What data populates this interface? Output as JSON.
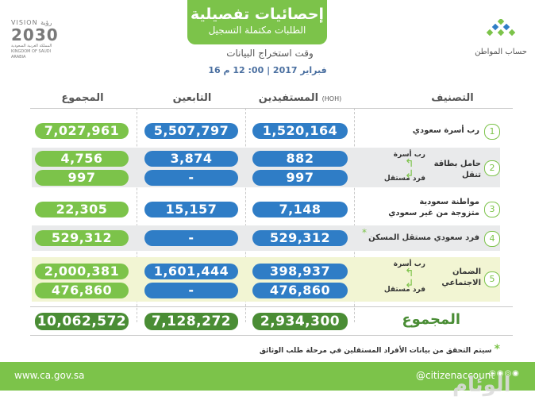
{
  "header": {
    "title": "إحصائيات تفصيلية",
    "subtitle": "الطلبات مكتملة التسجيل",
    "extract_label": "وقت استخراج البيانات",
    "extract_date": "16 فبراير 2017 | 00: 12 م"
  },
  "vision": {
    "top": "VISION رؤية",
    "year": "2030",
    "bottom": "المملكة العربية السعودية KINGDOM OF SAUDI ARABIA"
  },
  "brand": {
    "name": "حساب المواطن"
  },
  "columns": {
    "category": "التصنيف",
    "beneficiaries": "المستفيدين",
    "beneficiaries_note": "(HOH)",
    "dependents": "التابعين",
    "total": "المجموع"
  },
  "rows": [
    {
      "num": "1",
      "label": "رب أسرة سعودي",
      "beneficiaries": "1,520,164",
      "dependents": "5,507,797",
      "total": "7,027,961"
    },
    {
      "num": "2",
      "label": "حامل بطاقة تنقل",
      "sub_a": "رب أسرة",
      "sub_b": "فرد مستقل",
      "a": {
        "beneficiaries": "882",
        "dependents": "3,874",
        "total": "4,756"
      },
      "b": {
        "beneficiaries": "997",
        "dependents": "-",
        "total": "997"
      }
    },
    {
      "num": "3",
      "label": "مواطنة سعودية",
      "label2": "متزوجة من غير سعودي",
      "beneficiaries": "7,148",
      "dependents": "15,157",
      "total": "22,305"
    },
    {
      "num": "4",
      "label": "فرد سعودي مستقل المسكن",
      "star": "*",
      "beneficiaries": "529,312",
      "dependents": "-",
      "total": "529,312"
    },
    {
      "num": "5",
      "label": "الضمان",
      "label2": "الاجتماعي",
      "sub_a": "رب أسرة",
      "sub_b": "فرد مستقل",
      "a": {
        "beneficiaries": "398,937",
        "dependents": "1,601,444",
        "total": "2,000,381"
      },
      "b": {
        "beneficiaries": "476,860",
        "dependents": "-",
        "total": "476,860"
      }
    }
  ],
  "totals": {
    "label": "المجموع",
    "beneficiaries": "2,934,300",
    "dependents": "7,128,272",
    "total": "10,062,572"
  },
  "footnote": {
    "star": "*",
    "text": "سيتم التحقق من بيانات الأفراد المستقلين في مرحلة طلب الوثائق"
  },
  "footer": {
    "site": "www.ca.gov.sa",
    "handle": "@citizenaccount",
    "icons": "◎◉◎◉",
    "watermark": "الوئام"
  },
  "colors": {
    "green": "#7cc34a",
    "dark_green": "#4a8d35",
    "blue": "#2f7dc6"
  }
}
